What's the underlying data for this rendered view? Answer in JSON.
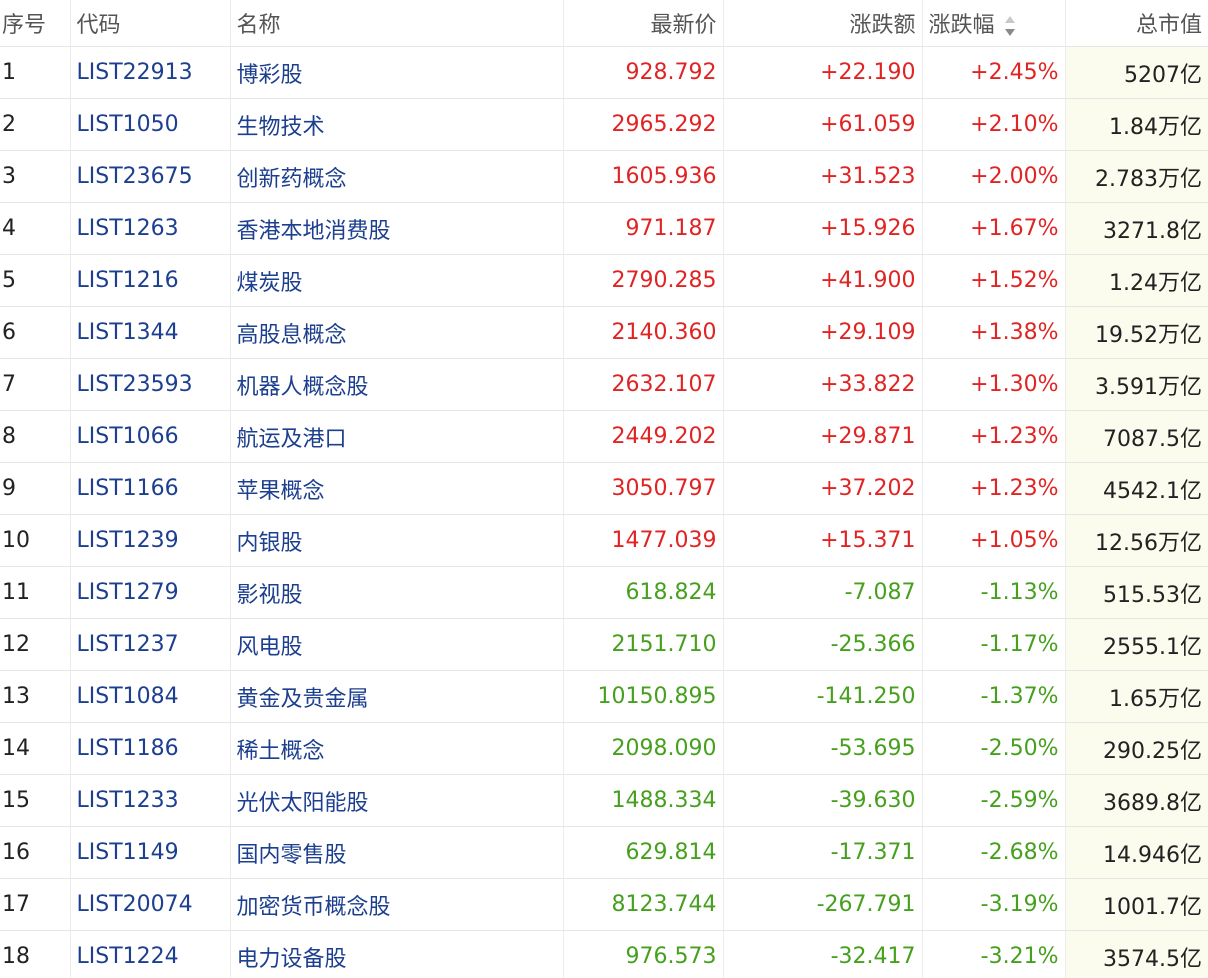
{
  "table": {
    "headers": [
      "序号",
      "代码",
      "名称",
      "最新价",
      "涨跌额",
      "涨跌幅",
      "总市值"
    ],
    "rows": [
      [
        "1",
        "LIST22913",
        "博彩股",
        "928.792",
        "+22.190",
        "+2.45%",
        "5207亿"
      ],
      [
        "2",
        "LIST1050",
        "生物技术",
        "2965.292",
        "+61.059",
        "+2.10%",
        "1.84万亿"
      ],
      [
        "3",
        "LIST23675",
        "创新药概念",
        "1605.936",
        "+31.523",
        "+2.00%",
        "2.783万亿"
      ],
      [
        "4",
        "LIST1263",
        "香港本地消费股",
        "971.187",
        "+15.926",
        "+1.67%",
        "3271.8亿"
      ],
      [
        "5",
        "LIST1216",
        "煤炭股",
        "2790.285",
        "+41.900",
        "+1.52%",
        "1.24万亿"
      ],
      [
        "6",
        "LIST1344",
        "高股息概念",
        "2140.360",
        "+29.109",
        "+1.38%",
        "19.52万亿"
      ],
      [
        "7",
        "LIST23593",
        "机器人概念股",
        "2632.107",
        "+33.822",
        "+1.30%",
        "3.591万亿"
      ],
      [
        "8",
        "LIST1066",
        "航运及港口",
        "2449.202",
        "+29.871",
        "+1.23%",
        "7087.5亿"
      ],
      [
        "9",
        "LIST1166",
        "苹果概念",
        "3050.797",
        "+37.202",
        "+1.23%",
        "4542.1亿"
      ],
      [
        "10",
        "LIST1239",
        "内银股",
        "1477.039",
        "+15.371",
        "+1.05%",
        "12.56万亿"
      ],
      [
        "11",
        "LIST1279",
        "影视股",
        "618.824",
        "-7.087",
        "-1.13%",
        "515.53亿"
      ],
      [
        "12",
        "LIST1237",
        "风电股",
        "2151.710",
        "-25.366",
        "-1.17%",
        "2555.1亿"
      ],
      [
        "13",
        "LIST1084",
        "黄金及贵金属",
        "10150.895",
        "-141.250",
        "-1.37%",
        "1.65万亿"
      ],
      [
        "14",
        "LIST1186",
        "稀土概念",
        "2098.090",
        "-53.695",
        "-2.50%",
        "290.25亿"
      ],
      [
        "15",
        "LIST1233",
        "光伏太阳能股",
        "1488.334",
        "-39.630",
        "-2.59%",
        "3689.8亿"
      ],
      [
        "16",
        "LIST1149",
        "国内零售股",
        "629.814",
        "-17.371",
        "-2.68%",
        "14.946亿"
      ],
      [
        "17",
        "LIST20074",
        "加密货币概念股",
        "8123.744",
        "-267.791",
        "-3.19%",
        "1001.7亿"
      ],
      [
        "18",
        "LIST1224",
        "电力设备股",
        "976.573",
        "-32.417",
        "-3.21%",
        "3574.5亿"
      ]
    ]
  }
}
